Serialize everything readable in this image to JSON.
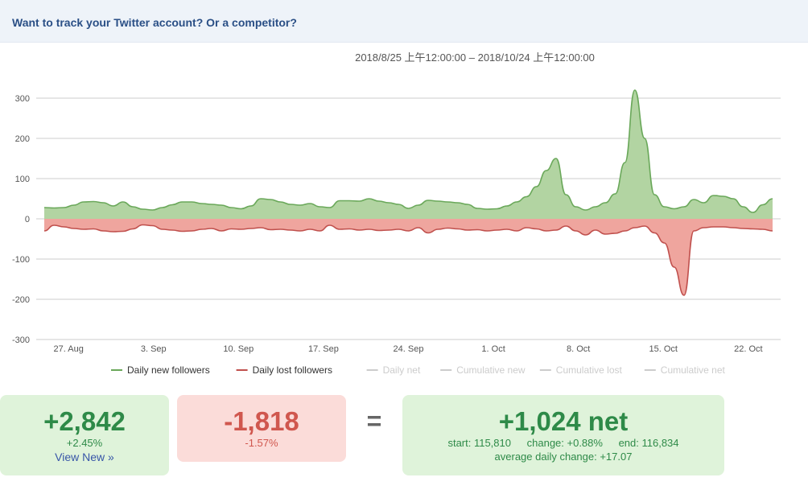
{
  "banner": {
    "text": "Want to track your Twitter account? Or a competitor?"
  },
  "chart_data": {
    "type": "area",
    "title": "2018/8/25 上午12:00:00 – 2018/10/24 上午12:00:00",
    "xlabel": "",
    "ylabel": "",
    "ylim": [
      -300,
      300
    ],
    "yticks": [
      300,
      200,
      100,
      0,
      -100,
      -200,
      -300
    ],
    "x_ticks": [
      {
        "label": "27. Aug",
        "day": 2
      },
      {
        "label": "3. Sep",
        "day": 9
      },
      {
        "label": "10. Sep",
        "day": 16
      },
      {
        "label": "17. Sep",
        "day": 23
      },
      {
        "label": "24. Sep",
        "day": 30
      },
      {
        "label": "1. Oct",
        "day": 37
      },
      {
        "label": "8. Oct",
        "day": 44
      },
      {
        "label": "15. Oct",
        "day": 51
      },
      {
        "label": "22. Oct",
        "day": 58
      }
    ],
    "grid": true,
    "legend_position": "bottom",
    "series": [
      {
        "name": "Daily new followers",
        "color": "#6aa85a",
        "fill": "#b2d4a2",
        "values": [
          28,
          27,
          28,
          34,
          42,
          43,
          40,
          32,
          42,
          30,
          24,
          22,
          28,
          35,
          42,
          42,
          38,
          36,
          34,
          28,
          25,
          32,
          50,
          48,
          42,
          36,
          34,
          38,
          30,
          28,
          45,
          45,
          44,
          50,
          44,
          40,
          36,
          26,
          34,
          46,
          44,
          42,
          40,
          36,
          26,
          24,
          25,
          32,
          42,
          55,
          80,
          120,
          150,
          60,
          30,
          22,
          30,
          40,
          62,
          140,
          320,
          200,
          60,
          30,
          25,
          30,
          48,
          40,
          58,
          56,
          50,
          30,
          16,
          35,
          50
        ]
      },
      {
        "name": "Daily lost followers",
        "color": "#c0504d",
        "fill": "#efa59e",
        "values": [
          -30,
          -16,
          -20,
          -24,
          -26,
          -25,
          -30,
          -32,
          -31,
          -25,
          -15,
          -17,
          -26,
          -28,
          -31,
          -30,
          -26,
          -24,
          -30,
          -25,
          -26,
          -24,
          -22,
          -27,
          -26,
          -28,
          -30,
          -26,
          -30,
          -16,
          -26,
          -25,
          -28,
          -26,
          -29,
          -28,
          -26,
          -30,
          -22,
          -35,
          -26,
          -23,
          -25,
          -28,
          -27,
          -30,
          -28,
          -26,
          -30,
          -22,
          -25,
          -30,
          -28,
          -18,
          -30,
          -40,
          -28,
          -38,
          -36,
          -30,
          -22,
          -18,
          -35,
          -60,
          -120,
          -190,
          -30,
          -22,
          -20,
          -20,
          -22,
          -24,
          -25,
          -26,
          -30
        ]
      },
      {
        "name": "Daily net",
        "color": "#cccccc",
        "hidden": true
      },
      {
        "name": "Cumulative new",
        "color": "#cccccc",
        "hidden": true
      },
      {
        "name": "Cumulative lost",
        "color": "#cccccc",
        "hidden": true
      },
      {
        "name": "Cumulative net",
        "color": "#cccccc",
        "hidden": true
      }
    ]
  },
  "summary": {
    "new": {
      "value": "+2,842",
      "pct": "+2.45%",
      "link": "View New »"
    },
    "lost": {
      "value": "-1,818",
      "pct": "-1.57%"
    },
    "equals": "=",
    "net": {
      "value": "+1,024 net",
      "start": "start: 115,810",
      "change": "change: +0.88%",
      "end": "end: 116,834",
      "avg": "average daily change: +17.07"
    }
  }
}
